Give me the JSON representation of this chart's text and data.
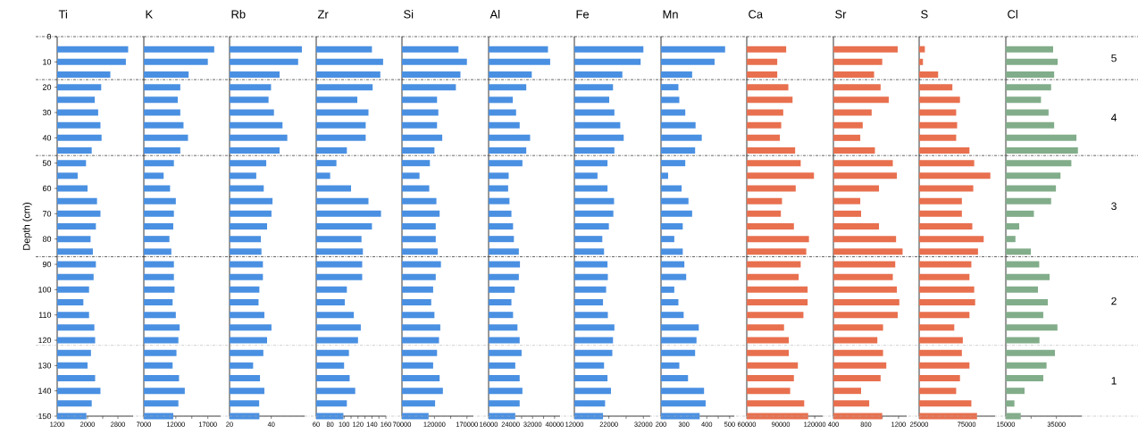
{
  "chart_data": [
    {
      "type": "bar",
      "orientation": "horizontal",
      "title": "Ti",
      "ylabel": "Depth (cm)",
      "color": "#4a90e2",
      "x": [
        5,
        10,
        15,
        20,
        25,
        30,
        35,
        40,
        45,
        50,
        55,
        60,
        65,
        70,
        75,
        80,
        85,
        90,
        95,
        100,
        105,
        110,
        115,
        120,
        125,
        130,
        135,
        140,
        145,
        150
      ],
      "values": [
        3070,
        3010,
        2600,
        2360,
        2190,
        2280,
        2340,
        2370,
        2110,
        1960,
        1740,
        2000,
        2250,
        2340,
        2220,
        2080,
        2140,
        2220,
        2160,
        2040,
        1890,
        2040,
        2180,
        2200,
        2090,
        2000,
        2200,
        2340,
        2110,
        1970
      ],
      "xlim": [
        1200,
        3200
      ],
      "xticks": [
        1200,
        {
          "value": 1600,
          "label": null
        },
        2000,
        {
          "value": 2400,
          "label": null
        },
        2800
      ],
      "ylim": [
        150,
        0
      ],
      "yticks": [
        0,
        10,
        20,
        30,
        40,
        50,
        60,
        70,
        80,
        90,
        100,
        110,
        120,
        130,
        140,
        150
      ],
      "ref_lines": [
        {
          "axis": "y",
          "value": 0,
          "color": "#000000",
          "line_style": "dashed"
        },
        {
          "axis": "y",
          "value": 17,
          "color": "#000000",
          "line_style": "dashed"
        },
        {
          "axis": "y",
          "value": 47,
          "color": "#000000",
          "line_style": "dashed"
        },
        {
          "axis": "y",
          "value": 87,
          "color": "#000000",
          "line_style": "dashed"
        },
        {
          "axis": "y",
          "value": 122,
          "color": "#b0b0b0",
          "line_style": "dashed"
        },
        {
          "axis": "y",
          "value": 150,
          "color": "#b0b0b0",
          "line_style": "dashed"
        }
      ]
    },
    {
      "type": "bar",
      "orientation": "horizontal",
      "title": "K",
      "color": "#4a90e2",
      "x": [
        5,
        10,
        15,
        20,
        25,
        30,
        35,
        40,
        45,
        50,
        55,
        60,
        65,
        70,
        75,
        80,
        85,
        90,
        95,
        100,
        105,
        110,
        115,
        120,
        125,
        130,
        135,
        140,
        145,
        150
      ],
      "values": [
        18000,
        17000,
        14000,
        12700,
        12300,
        12700,
        13200,
        13900,
        12700,
        11700,
        10100,
        11100,
        12000,
        11700,
        11600,
        11000,
        11300,
        11700,
        11700,
        11800,
        11500,
        12000,
        12600,
        12400,
        12100,
        11500,
        12500,
        13400,
        12400,
        11600
      ],
      "xlim": [
        7000,
        19000
      ],
      "xticks": [
        7000,
        {
          "value": 9500,
          "label": null
        },
        12000,
        {
          "value": 14500,
          "label": null
        },
        17000
      ],
      "ylim": [
        150,
        0
      ],
      "tick_labels": "x",
      "ref_lines": [
        {
          "axis": "y",
          "value": 0,
          "color": "#000000",
          "line_style": "dashed"
        },
        {
          "axis": "y",
          "value": 17,
          "color": "#000000",
          "line_style": "dashed"
        },
        {
          "axis": "y",
          "value": 47,
          "color": "#000000",
          "line_style": "dashed"
        },
        {
          "axis": "y",
          "value": 87,
          "color": "#000000",
          "line_style": "dashed"
        },
        {
          "axis": "y",
          "value": 122,
          "color": "#b0b0b0",
          "line_style": "dashed"
        },
        {
          "axis": "y",
          "value": 150,
          "color": "#b0b0b0",
          "line_style": "dashed"
        }
      ]
    },
    {
      "type": "bar",
      "orientation": "horizontal",
      "title": "Rb",
      "color": "#4a90e2",
      "x": [
        5,
        10,
        15,
        20,
        25,
        30,
        35,
        40,
        45,
        50,
        55,
        60,
        65,
        70,
        75,
        80,
        85,
        90,
        95,
        100,
        105,
        110,
        115,
        120,
        125,
        130,
        135,
        140,
        145,
        150
      ],
      "values": [
        54.7,
        52.9,
        44.0,
        39.9,
        38.7,
        41.3,
        45.4,
        47.7,
        44.0,
        37.6,
        32.8,
        36.4,
        40.6,
        40.1,
        38.0,
        35.0,
        35.3,
        36.0,
        36.0,
        34.3,
        33.9,
        36.7,
        40.1,
        38.0,
        36.2,
        31.3,
        34.6,
        36.7,
        34.2,
        34.3
      ],
      "xlim": [
        20,
        56
      ],
      "xticks": [
        20,
        {
          "value": 30,
          "label": null
        },
        40
      ],
      "ylim": [
        150,
        0
      ],
      "tick_labels": "x",
      "ref_lines": [
        {
          "axis": "y",
          "value": 0,
          "color": "#000000",
          "line_style": "dashed"
        },
        {
          "axis": "y",
          "value": 17,
          "color": "#000000",
          "line_style": "dashed"
        },
        {
          "axis": "y",
          "value": 47,
          "color": "#000000",
          "line_style": "dashed"
        },
        {
          "axis": "y",
          "value": 87,
          "color": "#000000",
          "line_style": "dashed"
        },
        {
          "axis": "y",
          "value": 122,
          "color": "#b0b0b0",
          "line_style": "dashed"
        },
        {
          "axis": "y",
          "value": 150,
          "color": "#b0b0b0",
          "line_style": "dashed"
        }
      ]
    },
    {
      "type": "bar",
      "orientation": "horizontal",
      "title": "Zr",
      "color": "#4a90e2",
      "x": [
        5,
        10,
        15,
        20,
        25,
        30,
        35,
        40,
        45,
        50,
        55,
        60,
        65,
        70,
        75,
        80,
        85,
        90,
        95,
        100,
        105,
        110,
        115,
        120,
        125,
        130,
        135,
        140,
        145,
        150
      ],
      "values": [
        140,
        156,
        152,
        141,
        119,
        135,
        131,
        131,
        104,
        89,
        80,
        110,
        135,
        153,
        140,
        125,
        127,
        126,
        126,
        104,
        101,
        114,
        124,
        120,
        107,
        100,
        108,
        116,
        104,
        99
      ],
      "xlim": [
        60,
        160
      ],
      "xticks": [
        60,
        {
          "value": 70,
          "label": null
        },
        80,
        {
          "value": 90,
          "label": null
        },
        100,
        {
          "value": 110,
          "label": null
        },
        120,
        {
          "value": 130,
          "label": null
        },
        140,
        {
          "value": 150,
          "label": null
        },
        160
      ],
      "ylim": [
        150,
        0
      ],
      "tick_labels": "x",
      "ref_lines": [
        {
          "axis": "y",
          "value": 0,
          "color": "#000000",
          "line_style": "dashed"
        },
        {
          "axis": "y",
          "value": 17,
          "color": "#000000",
          "line_style": "dashed"
        },
        {
          "axis": "y",
          "value": 47,
          "color": "#000000",
          "line_style": "dashed"
        },
        {
          "axis": "y",
          "value": 87,
          "color": "#000000",
          "line_style": "dashed"
        },
        {
          "axis": "y",
          "value": 122,
          "color": "#b0b0b0",
          "line_style": "dashed"
        },
        {
          "axis": "y",
          "value": 150,
          "color": "#b0b0b0",
          "line_style": "dashed"
        }
      ]
    },
    {
      "type": "bar",
      "orientation": "horizontal",
      "title": "Si",
      "color": "#4a90e2",
      "x": [
        5,
        10,
        15,
        20,
        25,
        30,
        35,
        40,
        45,
        50,
        55,
        60,
        65,
        70,
        75,
        80,
        85,
        90,
        95,
        100,
        105,
        110,
        115,
        120,
        125,
        130,
        135,
        140,
        145,
        150
      ],
      "values": [
        157000,
        170000,
        160000,
        153000,
        124000,
        126000,
        124000,
        132000,
        120000,
        113000,
        97000,
        112000,
        123000,
        128000,
        122000,
        122000,
        125000,
        130000,
        122000,
        118000,
        115000,
        120000,
        129000,
        127000,
        124000,
        118000,
        128000,
        133000,
        121000,
        111000
      ],
      "xlim": [
        70000,
        180000
      ],
      "xticks": [
        70000,
        {
          "value": 95000,
          "label": null
        },
        120000,
        {
          "value": 145000,
          "label": null
        },
        170000
      ],
      "ylim": [
        150,
        0
      ],
      "tick_labels": "x",
      "ref_lines": [
        {
          "axis": "y",
          "value": 0,
          "color": "#000000",
          "line_style": "dashed"
        },
        {
          "axis": "y",
          "value": 17,
          "color": "#000000",
          "line_style": "dashed"
        },
        {
          "axis": "y",
          "value": 47,
          "color": "#000000",
          "line_style": "dashed"
        },
        {
          "axis": "y",
          "value": 87,
          "color": "#000000",
          "line_style": "dashed"
        },
        {
          "axis": "y",
          "value": 122,
          "color": "#b0b0b0",
          "line_style": "dashed"
        },
        {
          "axis": "y",
          "value": 150,
          "color": "#b0b0b0",
          "line_style": "dashed"
        }
      ]
    },
    {
      "type": "bar",
      "orientation": "horizontal",
      "title": "Al",
      "color": "#4a90e2",
      "x": [
        5,
        10,
        15,
        20,
        25,
        30,
        35,
        40,
        45,
        50,
        55,
        60,
        65,
        70,
        75,
        80,
        85,
        90,
        95,
        100,
        105,
        110,
        115,
        120,
        125,
        130,
        135,
        140,
        145,
        150
      ],
      "values": [
        37600,
        38400,
        31700,
        29700,
        24800,
        26000,
        27300,
        31100,
        29700,
        28300,
        23300,
        23100,
        23600,
        24300,
        24900,
        25200,
        27000,
        27400,
        27000,
        25500,
        24300,
        24900,
        26500,
        27300,
        28000,
        25700,
        27300,
        28300,
        27300,
        25700
      ],
      "xlim": [
        16000,
        42000
      ],
      "xticks": [
        16000,
        {
          "value": 20000,
          "label": null
        },
        24000,
        {
          "value": 28000,
          "label": null
        },
        32000,
        {
          "value": 36000,
          "label": null
        },
        40000
      ],
      "ylim": [
        150,
        0
      ],
      "tick_labels": "x",
      "ref_lines": [
        {
          "axis": "y",
          "value": 0,
          "color": "#000000",
          "line_style": "dashed"
        },
        {
          "axis": "y",
          "value": 17,
          "color": "#000000",
          "line_style": "dashed"
        },
        {
          "axis": "y",
          "value": 47,
          "color": "#000000",
          "line_style": "dashed"
        },
        {
          "axis": "y",
          "value": 87,
          "color": "#000000",
          "line_style": "dashed"
        },
        {
          "axis": "y",
          "value": 122,
          "color": "#b0b0b0",
          "line_style": "dashed"
        },
        {
          "axis": "y",
          "value": 150,
          "color": "#b0b0b0",
          "line_style": "dashed"
        }
      ]
    },
    {
      "type": "bar",
      "orientation": "horizontal",
      "title": "Fe",
      "color": "#4a90e2",
      "x": [
        5,
        10,
        15,
        20,
        25,
        30,
        35,
        40,
        45,
        50,
        55,
        60,
        65,
        70,
        75,
        80,
        85,
        90,
        95,
        100,
        105,
        110,
        115,
        120,
        125,
        130,
        135,
        140,
        145,
        150
      ],
      "values": [
        32000,
        31200,
        25900,
        23200,
        22100,
        23600,
        25300,
        26300,
        23600,
        21600,
        18700,
        21600,
        23500,
        23300,
        22000,
        20100,
        20600,
        21600,
        21700,
        21200,
        20300,
        21700,
        23600,
        23200,
        23000,
        20600,
        21600,
        22600,
        20900,
        20300
      ],
      "xlim": [
        12000,
        34000
      ],
      "xticks": [
        12000,
        {
          "value": 17000,
          "label": null
        },
        22000,
        {
          "value": 27000,
          "label": null
        },
        32000
      ],
      "ylim": [
        150,
        0
      ],
      "tick_labels": "x",
      "ref_lines": [
        {
          "axis": "y",
          "value": 0,
          "color": "#000000",
          "line_style": "dashed"
        },
        {
          "axis": "y",
          "value": 17,
          "color": "#000000",
          "line_style": "dashed"
        },
        {
          "axis": "y",
          "value": 47,
          "color": "#000000",
          "line_style": "dashed"
        },
        {
          "axis": "y",
          "value": 87,
          "color": "#000000",
          "line_style": "dashed"
        },
        {
          "axis": "y",
          "value": 122,
          "color": "#b0b0b0",
          "line_style": "dashed"
        },
        {
          "axis": "y",
          "value": 150,
          "color": "#b0b0b0",
          "line_style": "dashed"
        }
      ]
    },
    {
      "type": "bar",
      "orientation": "horizontal",
      "title": "Mn",
      "color": "#4a90e2",
      "x": [
        5,
        10,
        15,
        20,
        25,
        30,
        35,
        40,
        45,
        50,
        55,
        60,
        65,
        70,
        75,
        80,
        85,
        90,
        95,
        100,
        105,
        110,
        115,
        120,
        125,
        130,
        135,
        140,
        145,
        150
      ],
      "values": [
        480,
        434,
        336,
        276,
        280,
        306,
        351,
        378,
        349,
        306,
        231,
        290,
        320,
        336,
        295,
        258,
        295,
        302,
        310,
        258,
        276,
        299,
        365,
        355,
        349,
        280,
        318,
        388,
        395,
        369
      ],
      "xlim": [
        200,
        520
      ],
      "xticks": [
        200,
        {
          "value": 250,
          "label": null
        },
        300,
        {
          "value": 350,
          "label": null
        },
        400,
        {
          "value": 450,
          "label": null
        },
        500
      ],
      "ylim": [
        150,
        0
      ],
      "tick_labels": "x",
      "ref_lines": [
        {
          "axis": "y",
          "value": 0,
          "color": "#000000",
          "line_style": "dashed"
        },
        {
          "axis": "y",
          "value": 17,
          "color": "#000000",
          "line_style": "dashed"
        },
        {
          "axis": "y",
          "value": 47,
          "color": "#000000",
          "line_style": "dashed"
        },
        {
          "axis": "y",
          "value": 87,
          "color": "#000000",
          "line_style": "dashed"
        },
        {
          "axis": "y",
          "value": 122,
          "color": "#b0b0b0",
          "line_style": "dashed"
        },
        {
          "axis": "y",
          "value": 150,
          "color": "#b0b0b0",
          "line_style": "dashed"
        }
      ]
    },
    {
      "type": "bar",
      "orientation": "horizontal",
      "title": "Ca",
      "color": "#e8704f",
      "x": [
        5,
        10,
        15,
        20,
        25,
        30,
        35,
        40,
        45,
        50,
        55,
        60,
        65,
        70,
        75,
        80,
        85,
        90,
        95,
        100,
        105,
        110,
        115,
        120,
        125,
        130,
        135,
        140,
        145,
        150
      ],
      "values": [
        94800,
        86900,
        86900,
        96700,
        100400,
        92200,
        90400,
        89200,
        102700,
        107600,
        119300,
        103200,
        91100,
        90100,
        101600,
        114900,
        112500,
        107600,
        105800,
        113700,
        113700,
        110000,
        92900,
        97100,
        97100,
        105100,
        101600,
        98300,
        110700,
        114200
      ],
      "xlim": [
        60000,
        127000
      ],
      "xticks": [
        60000,
        {
          "value": 75000,
          "label": null
        },
        90000,
        {
          "value": 105000,
          "label": null
        },
        120000
      ],
      "ylim": [
        150,
        0
      ],
      "tick_labels": "x",
      "ref_lines": [
        {
          "axis": "y",
          "value": 0,
          "color": "#000000",
          "line_style": "dashed"
        },
        {
          "axis": "y",
          "value": 17,
          "color": "#000000",
          "line_style": "dashed"
        },
        {
          "axis": "y",
          "value": 47,
          "color": "#000000",
          "line_style": "dashed"
        },
        {
          "axis": "y",
          "value": 87,
          "color": "#000000",
          "line_style": "dashed"
        },
        {
          "axis": "y",
          "value": 122,
          "color": "#b0b0b0",
          "line_style": "dashed"
        },
        {
          "axis": "y",
          "value": 150,
          "color": "#b0b0b0",
          "line_style": "dashed"
        }
      ]
    },
    {
      "type": "bar",
      "orientation": "horizontal",
      "title": "Sr",
      "color": "#e8704f",
      "x": [
        5,
        10,
        15,
        20,
        25,
        30,
        35,
        40,
        45,
        50,
        55,
        60,
        65,
        70,
        75,
        80,
        85,
        90,
        95,
        100,
        105,
        110,
        115,
        120,
        125,
        130,
        135,
        140,
        145,
        150
      ],
      "values": [
        1190,
        1000,
        900,
        980,
        1080,
        870,
        760,
        730,
        910,
        1130,
        1180,
        960,
        730,
        740,
        960,
        1170,
        1250,
        1160,
        1130,
        1180,
        1210,
        1190,
        1010,
        940,
        1010,
        1050,
        980,
        740,
        840,
        1000
      ],
      "xlim": [
        400,
        1300
      ],
      "xticks": [
        400,
        {
          "value": 600,
          "label": null
        },
        800,
        {
          "value": 1000,
          "label": null
        },
        1200
      ],
      "ylim": [
        150,
        0
      ],
      "tick_labels": "x",
      "ref_lines": [
        {
          "axis": "y",
          "value": 0,
          "color": "#000000",
          "line_style": "dashed"
        },
        {
          "axis": "y",
          "value": 17,
          "color": "#000000",
          "line_style": "dashed"
        },
        {
          "axis": "y",
          "value": 47,
          "color": "#000000",
          "line_style": "dashed"
        },
        {
          "axis": "y",
          "value": 87,
          "color": "#000000",
          "line_style": "dashed"
        },
        {
          "axis": "y",
          "value": 122,
          "color": "#b0b0b0",
          "line_style": "dashed"
        },
        {
          "axis": "y",
          "value": 150,
          "color": "#b0b0b0",
          "line_style": "dashed"
        }
      ]
    },
    {
      "type": "bar",
      "orientation": "horizontal",
      "title": "S",
      "color": "#e8704f",
      "x": [
        5,
        10,
        15,
        20,
        25,
        30,
        35,
        40,
        45,
        50,
        55,
        60,
        65,
        70,
        75,
        80,
        85,
        90,
        95,
        100,
        105,
        110,
        115,
        120,
        125,
        130,
        135,
        140,
        145,
        150
      ],
      "values": [
        31000,
        29000,
        45000,
        60000,
        68000,
        64000,
        65000,
        64000,
        78000,
        83000,
        100000,
        82000,
        70000,
        70000,
        81000,
        93000,
        87000,
        80000,
        78000,
        83000,
        84000,
        78000,
        62000,
        71000,
        70000,
        78000,
        68000,
        64000,
        80000,
        86000
      ],
      "xlim": [
        25000,
        105000
      ],
      "xticks": [
        25000,
        {
          "value": 50000,
          "label": null
        },
        75000
      ],
      "ylim": [
        150,
        0
      ],
      "tick_labels": "x",
      "ref_lines": [
        {
          "axis": "y",
          "value": 0,
          "color": "#000000",
          "line_style": "dashed"
        },
        {
          "axis": "y",
          "value": 17,
          "color": "#000000",
          "line_style": "dashed"
        },
        {
          "axis": "y",
          "value": 47,
          "color": "#000000",
          "line_style": "dashed"
        },
        {
          "axis": "y",
          "value": 87,
          "color": "#000000",
          "line_style": "dashed"
        },
        {
          "axis": "y",
          "value": 122,
          "color": "#b0b0b0",
          "line_style": "dashed"
        },
        {
          "axis": "y",
          "value": 150,
          "color": "#b0b0b0",
          "line_style": "dashed"
        }
      ]
    },
    {
      "type": "bar",
      "orientation": "horizontal",
      "title": "Cl",
      "color": "#82ad8a",
      "x": [
        5,
        10,
        15,
        20,
        25,
        30,
        35,
        40,
        45,
        50,
        55,
        60,
        65,
        70,
        75,
        80,
        85,
        90,
        95,
        100,
        105,
        110,
        115,
        120,
        125,
        130,
        135,
        140,
        145,
        150
      ],
      "values": [
        33700,
        35500,
        34100,
        32900,
        28900,
        31900,
        34100,
        42900,
        43500,
        40900,
        36600,
        34800,
        32900,
        26100,
        20300,
        18800,
        24900,
        28200,
        32300,
        27700,
        31600,
        29800,
        35400,
        28300,
        34400,
        31100,
        29800,
        22400,
        18400,
        20900
      ],
      "xlim": [
        15000,
        45000
      ],
      "xticks": [
        15000,
        {
          "value": 25000,
          "label": null
        },
        35000
      ],
      "ylim": [
        150,
        0
      ],
      "tick_labels": "x",
      "ref_lines": [
        {
          "axis": "y",
          "value": 0,
          "color": "#000000",
          "line_style": "dashed"
        },
        {
          "axis": "y",
          "value": 17,
          "color": "#000000",
          "line_style": "dashed"
        },
        {
          "axis": "y",
          "value": 47,
          "color": "#000000",
          "line_style": "dashed"
        },
        {
          "axis": "y",
          "value": 87,
          "color": "#000000",
          "line_style": "dashed"
        },
        {
          "axis": "y",
          "value": 122,
          "color": "#b0b0b0",
          "line_style": "dashed"
        },
        {
          "axis": "y",
          "value": 150,
          "color": "#b0b0b0",
          "line_style": "dashed"
        }
      ],
      "annotations": [
        "5",
        "4",
        "3",
        "2",
        "1"
      ]
    }
  ]
}
